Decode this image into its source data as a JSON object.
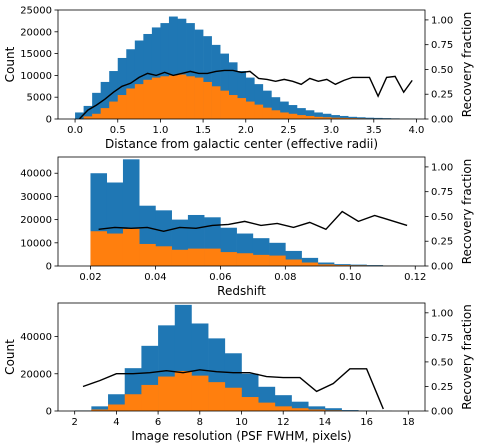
{
  "colors": {
    "total": "#1f77b4",
    "recovered": "#ff7f0e",
    "fraction": "#000000"
  },
  "chart_data": [
    {
      "type": "bar",
      "xlabel": "Distance from galactic center (effective radii)",
      "ylabel": "Count",
      "y2label": "Recovery fraction",
      "bin_width": 0.1,
      "xlim": [
        -0.2,
        4.1
      ],
      "ylim": [
        0,
        25000
      ],
      "y2lim": [
        0,
        1.1
      ],
      "xticks": [
        0.0,
        0.5,
        1.0,
        1.5,
        2.0,
        2.5,
        3.0,
        3.5,
        4.0
      ],
      "xtick_labels": [
        "0.0",
        "0.5",
        "1.0",
        "1.5",
        "2.0",
        "2.5",
        "3.0",
        "3.5",
        "4.0"
      ],
      "yticks": [
        0,
        5000,
        10000,
        15000,
        20000,
        25000
      ],
      "ytick_labels": [
        "0",
        "5000",
        "10000",
        "15000",
        "20000",
        "25000"
      ],
      "y2ticks": [
        0,
        0.25,
        0.5,
        0.75,
        1.0
      ],
      "y2tick_labels": [
        "0.00",
        "0.25",
        "0.50",
        "0.75",
        "1.00"
      ],
      "bins": [
        0.0,
        0.1,
        0.2,
        0.3,
        0.4,
        0.5,
        0.6,
        0.7,
        0.8,
        0.9,
        1.0,
        1.1,
        1.2,
        1.3,
        1.4,
        1.5,
        1.6,
        1.7,
        1.8,
        1.9,
        2.0,
        2.1,
        2.2,
        2.3,
        2.4,
        2.5,
        2.6,
        2.7,
        2.8,
        2.9,
        3.0,
        3.1,
        3.2,
        3.3,
        3.4,
        3.5,
        3.6,
        3.7,
        3.8,
        3.9
      ],
      "series": [
        {
          "name": "total",
          "values": [
            1500,
            3000,
            6000,
            8500,
            11000,
            14000,
            16000,
            18000,
            19500,
            21000,
            22000,
            23500,
            23000,
            22000,
            20500,
            19000,
            17000,
            15000,
            13000,
            11000,
            9500,
            8000,
            6500,
            5000,
            4000,
            3200,
            2500,
            2000,
            1500,
            1200,
            900,
            700,
            500,
            400,
            300,
            250,
            200,
            150,
            100,
            80
          ]
        },
        {
          "name": "recovered",
          "values": [
            0,
            600,
            1200,
            2500,
            4000,
            5500,
            7000,
            8000,
            9000,
            9500,
            9800,
            10000,
            10200,
            9800,
            9500,
            8500,
            7500,
            6500,
            5500,
            4800,
            4000,
            3300,
            2600,
            2000,
            1500,
            1200,
            900,
            700,
            500,
            400,
            300,
            250,
            200,
            150,
            100,
            80,
            60,
            50,
            30,
            20
          ]
        }
      ],
      "line": {
        "name": "fraction",
        "x": [
          0.05,
          0.15,
          0.25,
          0.35,
          0.45,
          0.55,
          0.65,
          0.75,
          0.85,
          0.95,
          1.05,
          1.15,
          1.25,
          1.35,
          1.45,
          1.55,
          1.65,
          1.75,
          1.85,
          1.95,
          2.05,
          2.15,
          2.25,
          2.35,
          2.45,
          2.55,
          2.65,
          2.75,
          2.85,
          2.95,
          3.05,
          3.15,
          3.25,
          3.35,
          3.45,
          3.55,
          3.65,
          3.75,
          3.85,
          3.95
        ],
        "y": [
          0.0,
          0.09,
          0.14,
          0.2,
          0.27,
          0.33,
          0.36,
          0.42,
          0.46,
          0.44,
          0.47,
          0.44,
          0.46,
          0.48,
          0.46,
          0.46,
          0.48,
          0.49,
          0.49,
          0.47,
          0.48,
          0.41,
          0.4,
          0.38,
          0.4,
          0.38,
          0.35,
          0.41,
          0.38,
          0.4,
          0.35,
          0.39,
          0.42,
          0.42,
          0.42,
          0.23,
          0.42,
          0.43,
          0.27,
          0.39
        ]
      }
    },
    {
      "type": "bar",
      "xlabel": "Redshift",
      "ylabel": "",
      "y2label": "Recovery fraction",
      "bin_width": 0.005,
      "xlim": [
        0.01,
        0.123
      ],
      "ylim": [
        0,
        47000
      ],
      "y2lim": [
        0,
        1.1
      ],
      "xticks": [
        0.02,
        0.04,
        0.06,
        0.08,
        0.1,
        0.12
      ],
      "xtick_labels": [
        "0.02",
        "0.04",
        "0.06",
        "0.08",
        "0.10",
        "0.12"
      ],
      "yticks": [
        0,
        10000,
        20000,
        30000,
        40000
      ],
      "ytick_labels": [
        "0",
        "10000",
        "20000",
        "30000",
        "40000"
      ],
      "y2ticks": [
        0,
        0.25,
        0.5,
        0.75,
        1.0
      ],
      "y2tick_labels": [
        "0.00",
        "0.25",
        "0.50",
        "0.75",
        "1.00"
      ],
      "bins": [
        0.02,
        0.025,
        0.03,
        0.035,
        0.04,
        0.045,
        0.05,
        0.055,
        0.06,
        0.065,
        0.07,
        0.075,
        0.08,
        0.085,
        0.09,
        0.095,
        0.1,
        0.105,
        0.11,
        0.115
      ],
      "series": [
        {
          "name": "total",
          "values": [
            40000,
            36000,
            46000,
            26000,
            24000,
            20000,
            22000,
            21000,
            16500,
            14000,
            12000,
            10000,
            6500,
            3500,
            1500,
            800,
            600,
            400,
            200,
            100
          ]
        },
        {
          "name": "recovered",
          "values": [
            15000,
            14000,
            16000,
            9500,
            8500,
            7000,
            7500,
            7500,
            6000,
            5500,
            4800,
            4500,
            2800,
            1500,
            700,
            400,
            300,
            200,
            100,
            50
          ]
        }
      ],
      "line": {
        "name": "fraction",
        "x": [
          0.0225,
          0.0275,
          0.0325,
          0.0375,
          0.0425,
          0.0475,
          0.0525,
          0.0575,
          0.0625,
          0.0675,
          0.0725,
          0.0775,
          0.0825,
          0.0875,
          0.0925,
          0.0975,
          0.1025,
          0.1075,
          0.1125,
          0.1175
        ],
        "y": [
          0.37,
          0.39,
          0.38,
          0.39,
          0.35,
          0.39,
          0.38,
          0.41,
          0.42,
          0.45,
          0.41,
          0.43,
          0.39,
          0.44,
          0.37,
          0.55,
          0.45,
          0.51,
          0.46,
          0.41
        ]
      }
    },
    {
      "type": "bar",
      "xlabel": "Image resolution (PSF FWHM, pixels)",
      "ylabel": "Count",
      "y2label": "Recovery fraction",
      "bin_width": 0.8,
      "xlim": [
        1.2,
        18.8
      ],
      "ylim": [
        0,
        58000
      ],
      "y2lim": [
        0,
        1.1
      ],
      "xticks": [
        2,
        4,
        6,
        8,
        10,
        12,
        14,
        16,
        18
      ],
      "xtick_labels": [
        "2",
        "4",
        "6",
        "8",
        "10",
        "12",
        "14",
        "16",
        "18"
      ],
      "yticks": [
        0,
        20000,
        40000
      ],
      "ytick_labels": [
        "0",
        "20000",
        "40000"
      ],
      "y2ticks": [
        0,
        0.25,
        0.5,
        0.75,
        1.0
      ],
      "y2tick_labels": [
        "0.00",
        "0.25",
        "0.50",
        "0.75",
        "1.00"
      ],
      "bins": [
        2.0,
        2.8,
        3.6,
        4.4,
        5.2,
        6.0,
        6.8,
        7.6,
        8.4,
        9.2,
        10.0,
        10.8,
        11.6,
        12.4,
        13.2,
        14.0,
        14.8,
        15.6,
        16.4,
        17.2
      ],
      "series": [
        {
          "name": "total",
          "values": [
            300,
            2500,
            9000,
            23000,
            35000,
            46000,
            57000,
            47000,
            39000,
            31000,
            20000,
            13000,
            8500,
            5000,
            2500,
            1500,
            500,
            200,
            100,
            0
          ]
        },
        {
          "name": "recovered",
          "values": [
            100,
            800,
            3500,
            9000,
            14000,
            18500,
            21500,
            19000,
            15500,
            12500,
            7500,
            4500,
            2500,
            1500,
            800,
            400,
            150,
            50,
            20,
            0
          ]
        }
      ],
      "line": {
        "name": "fraction",
        "x": [
          2.4,
          3.2,
          4.0,
          4.8,
          5.6,
          6.4,
          7.2,
          8.0,
          8.8,
          9.6,
          10.4,
          11.2,
          12.0,
          12.8,
          13.6,
          14.4,
          15.2,
          16.0,
          16.8
        ],
        "y": [
          0.25,
          0.31,
          0.38,
          0.38,
          0.39,
          0.41,
          0.39,
          0.42,
          0.4,
          0.39,
          0.39,
          0.35,
          0.34,
          0.34,
          0.2,
          0.28,
          0.43,
          0.43,
          0.02
        ]
      }
    }
  ]
}
